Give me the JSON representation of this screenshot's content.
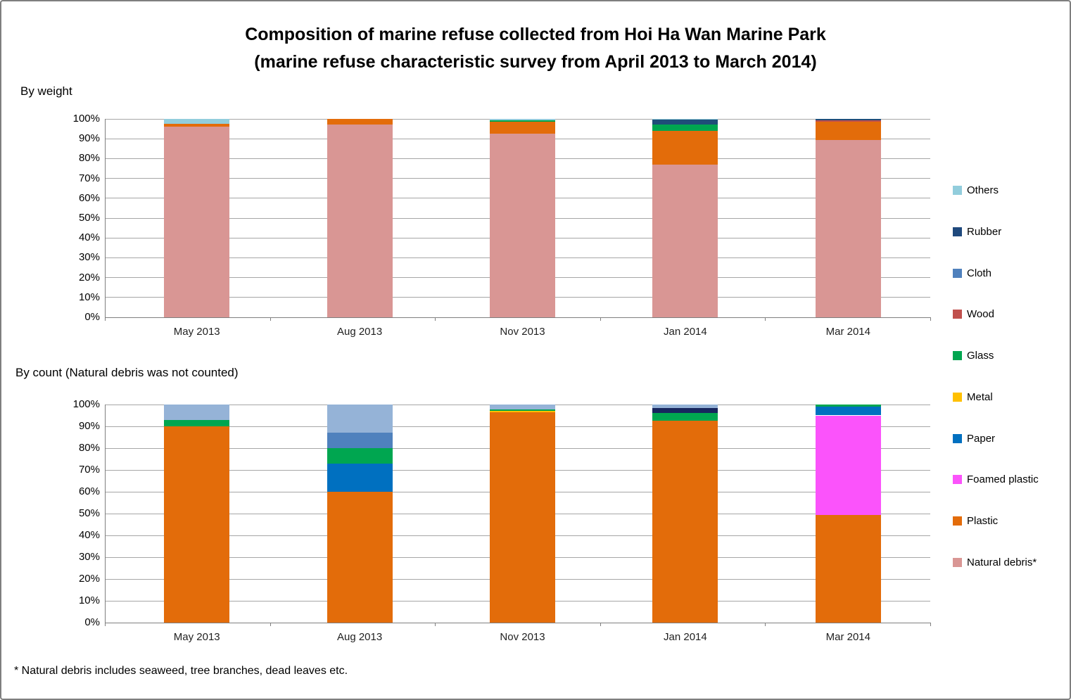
{
  "title": {
    "line1": "Composition of marine refuse collected from Hoi Ha Wan Marine Park",
    "line2": "(marine refuse characteristic survey from April 2013 to March 2014)"
  },
  "footnote": "* Natural debris includes seaweed, tree branches, dead leaves etc.",
  "legend": {
    "position": "right",
    "items": [
      {
        "label": "Others",
        "color": "#92CDDC"
      },
      {
        "label": "Rubber",
        "color": "#1F497D"
      },
      {
        "label": "Cloth",
        "color": "#4F81BD"
      },
      {
        "label": "Wood",
        "color": "#C0504D"
      },
      {
        "label": "Glass",
        "color": "#00A650"
      },
      {
        "label": "Metal",
        "color": "#FFC000"
      },
      {
        "label": "Paper",
        "color": "#0070C0"
      },
      {
        "label": "Foamed plastic",
        "color": "#FB53FB"
      },
      {
        "label": "Plastic",
        "color": "#E36C0A"
      },
      {
        "label": "Natural debris*",
        "color": "#D99694"
      }
    ]
  },
  "chart_data": [
    {
      "type": "bar",
      "subtype": "stacked-100-percent",
      "title": "By weight",
      "categories": [
        "May 2013",
        "Aug 2013",
        "Nov 2013",
        "Jan 2014",
        "Mar 2014"
      ],
      "stack_order": "first series at bottom",
      "series": [
        {
          "name": "Natural debris*",
          "color": "#D99694",
          "values": [
            96,
            97,
            92.5,
            77,
            89.5
          ]
        },
        {
          "name": "Plastic",
          "color": "#E36C0A",
          "values": [
            1.5,
            3,
            6,
            17,
            9
          ]
        },
        {
          "name": "Foamed plastic",
          "color": "#FB53FB",
          "values": [
            0,
            0,
            0,
            0,
            0
          ]
        },
        {
          "name": "Paper",
          "color": "#0070C0",
          "values": [
            0,
            0,
            0,
            0,
            0
          ]
        },
        {
          "name": "Metal",
          "color": "#FFC000",
          "values": [
            0,
            0,
            0,
            0,
            0
          ]
        },
        {
          "name": "Glass",
          "color": "#00A650",
          "values": [
            0,
            0,
            0.75,
            3,
            0
          ]
        },
        {
          "name": "Wood",
          "color": "#C0504D",
          "values": [
            0,
            0,
            0,
            0,
            0.75
          ]
        },
        {
          "name": "Cloth",
          "color": "#4F81BD",
          "values": [
            0,
            0,
            0,
            0,
            0
          ]
        },
        {
          "name": "Rubber",
          "color": "#1F4E79",
          "values": [
            0,
            0,
            0,
            2.5,
            0.75
          ]
        },
        {
          "name": "Others",
          "color": "#92CDDC",
          "values": [
            2.5,
            0,
            0.75,
            0.5,
            0
          ]
        }
      ],
      "ylim": [
        0,
        100
      ],
      "yticks": [
        "0%",
        "10%",
        "20%",
        "30%",
        "40%",
        "50%",
        "60%",
        "70%",
        "80%",
        "90%",
        "100%"
      ],
      "grid": true
    },
    {
      "type": "bar",
      "subtype": "stacked-100-percent",
      "title": "By count (Natural debris was not counted)",
      "categories": [
        "May 2013",
        "Aug 2013",
        "Nov 2013",
        "Jan 2014",
        "Mar 2014"
      ],
      "stack_order": "first series at bottom",
      "series": [
        {
          "name": "Plastic",
          "color": "#E36C0A",
          "values": [
            90,
            60,
            96.5,
            92.5,
            49.5
          ]
        },
        {
          "name": "Foamed plastic",
          "color": "#FB53FB",
          "values": [
            0,
            0,
            0,
            0,
            45.5
          ]
        },
        {
          "name": "Paper",
          "color": "#0070C0",
          "values": [
            0,
            13,
            0,
            0,
            4
          ]
        },
        {
          "name": "Metal",
          "color": "#FFC000",
          "values": [
            0,
            0,
            0.5,
            0,
            0
          ]
        },
        {
          "name": "Glass",
          "color": "#00A650",
          "values": [
            3,
            7,
            0.75,
            3.5,
            1
          ]
        },
        {
          "name": "Wood",
          "color": "#C0504D",
          "values": [
            0,
            0,
            0,
            0,
            0
          ]
        },
        {
          "name": "Cloth",
          "color": "#4F81BD",
          "values": [
            0,
            7,
            0,
            0,
            0
          ]
        },
        {
          "name": "Rubber",
          "color": "#17265E",
          "values": [
            0,
            0,
            0,
            2.5,
            0
          ]
        },
        {
          "name": "Others",
          "color": "#95B3D7",
          "values": [
            7,
            13,
            2.25,
            1.5,
            0
          ]
        }
      ],
      "ylim": [
        0,
        100
      ],
      "yticks": [
        "0%",
        "10%",
        "20%",
        "30%",
        "40%",
        "50%",
        "60%",
        "70%",
        "80%",
        "90%",
        "100%"
      ],
      "grid": true
    }
  ]
}
